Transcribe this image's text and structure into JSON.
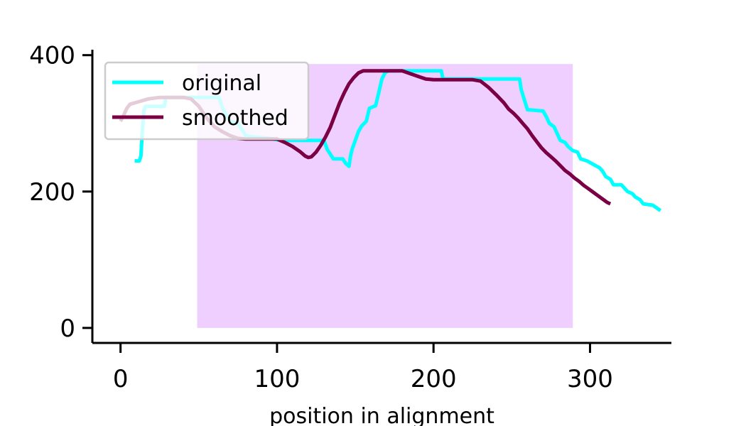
{
  "chart_data": {
    "type": "line",
    "title": "",
    "xlabel": "position in alignment",
    "ylabel": "",
    "xlim": [
      -18,
      352
    ],
    "ylim": [
      -22,
      408
    ],
    "x_ticks": [
      0,
      100,
      200,
      300
    ],
    "y_ticks": [
      0,
      200,
      400
    ],
    "grid": false,
    "legend_position": "top-left",
    "highlight_region": {
      "x": [
        49,
        289
      ],
      "y": [
        0,
        387
      ],
      "color": "#eecfff"
    },
    "series": [
      {
        "name": "original",
        "color": "#00ffff",
        "points": [
          [
            9,
            245
          ],
          [
            12,
            245
          ],
          [
            13,
            252
          ],
          [
            14,
            290
          ],
          [
            15,
            320
          ],
          [
            16,
            325
          ],
          [
            28,
            325
          ],
          [
            29,
            338
          ],
          [
            63,
            338
          ],
          [
            65,
            323
          ],
          [
            70,
            303
          ],
          [
            75,
            300
          ],
          [
            80,
            282
          ],
          [
            85,
            280
          ],
          [
            95,
            278
          ],
          [
            100,
            276
          ],
          [
            105,
            275
          ],
          [
            130,
            275
          ],
          [
            132,
            262
          ],
          [
            134,
            255
          ],
          [
            136,
            248
          ],
          [
            142,
            248
          ],
          [
            144,
            241
          ],
          [
            146,
            237
          ],
          [
            147,
            252
          ],
          [
            148,
            262
          ],
          [
            150,
            275
          ],
          [
            152,
            288
          ],
          [
            154,
            296
          ],
          [
            157,
            303
          ],
          [
            159,
            322
          ],
          [
            163,
            326
          ],
          [
            165,
            345
          ],
          [
            167,
            365
          ],
          [
            169,
            374
          ],
          [
            171,
            377
          ],
          [
            205,
            377
          ],
          [
            206,
            365
          ],
          [
            255,
            365
          ],
          [
            256,
            350
          ],
          [
            258,
            335
          ],
          [
            260,
            320
          ],
          [
            270,
            318
          ],
          [
            272,
            310
          ],
          [
            274,
            300
          ],
          [
            277,
            295
          ],
          [
            279,
            285
          ],
          [
            281,
            275
          ],
          [
            284,
            272
          ],
          [
            286,
            266
          ],
          [
            289,
            260
          ],
          [
            292,
            258
          ],
          [
            294,
            248
          ],
          [
            298,
            245
          ],
          [
            302,
            240
          ],
          [
            306,
            235
          ],
          [
            308,
            230
          ],
          [
            310,
            222
          ],
          [
            313,
            218
          ],
          [
            315,
            210
          ],
          [
            320,
            210
          ],
          [
            322,
            205
          ],
          [
            324,
            200
          ],
          [
            327,
            197
          ],
          [
            329,
            192
          ],
          [
            332,
            188
          ],
          [
            334,
            182
          ],
          [
            340,
            180
          ],
          [
            342,
            177
          ],
          [
            345,
            172
          ]
        ]
      },
      {
        "name": "smoothed",
        "color": "#7a0043",
        "points": [
          [
            0,
            303
          ],
          [
            2,
            312
          ],
          [
            4,
            322
          ],
          [
            6,
            328
          ],
          [
            12,
            332
          ],
          [
            18,
            336
          ],
          [
            25,
            338
          ],
          [
            40,
            338
          ],
          [
            45,
            336
          ],
          [
            50,
            325
          ],
          [
            55,
            308
          ],
          [
            60,
            295
          ],
          [
            65,
            288
          ],
          [
            70,
            282
          ],
          [
            75,
            278
          ],
          [
            80,
            277
          ],
          [
            100,
            277
          ],
          [
            105,
            272
          ],
          [
            110,
            266
          ],
          [
            115,
            258
          ],
          [
            118,
            252
          ],
          [
            120,
            250
          ],
          [
            122,
            251
          ],
          [
            125,
            258
          ],
          [
            128,
            268
          ],
          [
            131,
            280
          ],
          [
            134,
            294
          ],
          [
            137,
            312
          ],
          [
            140,
            330
          ],
          [
            143,
            345
          ],
          [
            146,
            358
          ],
          [
            149,
            367
          ],
          [
            152,
            374
          ],
          [
            155,
            377
          ],
          [
            170,
            377
          ],
          [
            180,
            377
          ],
          [
            185,
            373
          ],
          [
            190,
            369
          ],
          [
            195,
            365
          ],
          [
            200,
            364
          ],
          [
            210,
            364
          ],
          [
            225,
            364
          ],
          [
            230,
            362
          ],
          [
            235,
            353
          ],
          [
            240,
            342
          ],
          [
            245,
            330
          ],
          [
            248,
            321
          ],
          [
            251,
            315
          ],
          [
            254,
            308
          ],
          [
            257,
            300
          ],
          [
            260,
            292
          ],
          [
            263,
            282
          ],
          [
            266,
            273
          ],
          [
            269,
            264
          ],
          [
            272,
            257
          ],
          [
            275,
            251
          ],
          [
            278,
            245
          ],
          [
            281,
            238
          ],
          [
            284,
            231
          ],
          [
            287,
            226
          ],
          [
            290,
            220
          ],
          [
            293,
            215
          ],
          [
            296,
            209
          ],
          [
            299,
            204
          ],
          [
            302,
            199
          ],
          [
            305,
            194
          ],
          [
            308,
            189
          ],
          [
            311,
            184
          ],
          [
            313,
            182
          ]
        ]
      }
    ]
  }
}
